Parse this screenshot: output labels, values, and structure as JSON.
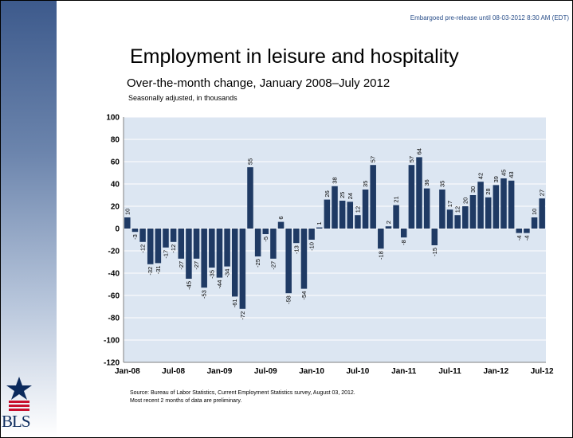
{
  "header": {
    "embargo": "Embargoed pre-release until 08-03-2012 8:30 AM (EDT)",
    "title": "Employment in leisure and hospitality",
    "subtitle": "Over-the-month change, January 2008–July 2012",
    "unit_note": "Seasonally adjusted, in thousands"
  },
  "footer": {
    "source_line1": "Source: Bureau of Labor Statistics, Current Employment Statistics survey, August 03, 2012.",
    "source_line2": "Most recent 2 months of data are preliminary.",
    "logo_text": "BLS"
  },
  "colors": {
    "bar": "#1f3a64",
    "plot_background": "#dce6f2",
    "gridline": "#ffffff",
    "sidebar": "#3d5a8c",
    "embargo_text": "#2a4f8a"
  },
  "chart_data": {
    "type": "bar",
    "title": "Employment in leisure and hospitality",
    "subtitle": "Over-the-month change, January 2008–July 2012",
    "ylabel": "Seasonally adjusted, in thousands",
    "ylim": [
      -120,
      100
    ],
    "yticks": [
      100,
      80,
      60,
      40,
      20,
      0,
      -20,
      -40,
      -60,
      -80,
      -100,
      -120
    ],
    "grid": true,
    "legend": "none",
    "x_tick_labels": [
      "Jan-08",
      "Jul-08",
      "Jan-09",
      "Jul-09",
      "Jan-10",
      "Jul-10",
      "Jan-11",
      "Jul-11",
      "Jan-12",
      "Jul-12"
    ],
    "x_tick_index": [
      0,
      6,
      12,
      18,
      24,
      30,
      36,
      42,
      48,
      54
    ],
    "categories": [
      "Jan-08",
      "Feb-08",
      "Mar-08",
      "Apr-08",
      "May-08",
      "Jun-08",
      "Jul-08",
      "Aug-08",
      "Sep-08",
      "Oct-08",
      "Nov-08",
      "Dec-08",
      "Jan-09",
      "Feb-09",
      "Mar-09",
      "Apr-09",
      "May-09",
      "Jun-09",
      "Jul-09",
      "Aug-09",
      "Sep-09",
      "Oct-09",
      "Nov-09",
      "Dec-09",
      "Jan-10",
      "Feb-10",
      "Mar-10",
      "Apr-10",
      "May-10",
      "Jun-10",
      "Jul-10",
      "Aug-10",
      "Sep-10",
      "Oct-10",
      "Nov-10",
      "Dec-10",
      "Jan-11",
      "Feb-11",
      "Mar-11",
      "Apr-11",
      "May-11",
      "Jun-11",
      "Jul-11",
      "Aug-11",
      "Sep-11",
      "Oct-11",
      "Nov-11",
      "Dec-11",
      "Jan-12",
      "Feb-12",
      "Mar-12",
      "Apr-12",
      "May-12",
      "Jun-12",
      "Jul-12"
    ],
    "values": [
      10,
      -3,
      -12,
      -32,
      -31,
      -17,
      -12,
      -27,
      -45,
      -27,
      -53,
      -35,
      -44,
      -34,
      -61,
      -72,
      55,
      -25,
      -5,
      -27,
      6,
      -58,
      -13,
      -54,
      -10,
      1,
      26,
      38,
      25,
      24,
      12,
      35,
      57,
      -18,
      2,
      21,
      -8,
      57,
      64,
      36,
      -15,
      35,
      17,
      12,
      20,
      30,
      42,
      28,
      39,
      45,
      43,
      -4,
      -4,
      10,
      27
    ]
  }
}
